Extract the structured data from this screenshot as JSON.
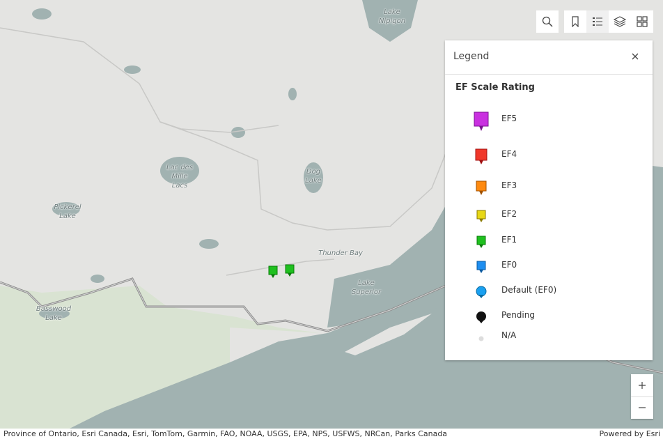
{
  "map": {
    "labels": [
      {
        "lines": [
          "Lake",
          "Nipigon"
        ]
      },
      {
        "lines": [
          "Lac des",
          "Mille",
          "Lacs"
        ]
      },
      {
        "lines": [
          "Dog",
          "Lake"
        ]
      },
      {
        "lines": [
          "Pickerel",
          "Lake"
        ]
      },
      {
        "lines": [
          "Thunder Bay"
        ]
      },
      {
        "lines": [
          "Lake",
          "Superior"
        ]
      },
      {
        "lines": [
          "Basswood",
          "Lake"
        ]
      }
    ]
  },
  "legend": {
    "title": "Legend",
    "heading": "EF Scale Rating",
    "items": [
      "EF5",
      "EF4",
      "EF3",
      "EF2",
      "EF1",
      "EF0",
      "Default (EF0)",
      "Pending",
      "N/A"
    ]
  },
  "attribution": "Province of Ontario, Esri Canada, Esri, TomTom, Garmin, FAO, NOAA, USGS, EPA, NPS, USFWS, NRCan, Parks Canada",
  "powered_by": "Powered by Esri"
}
